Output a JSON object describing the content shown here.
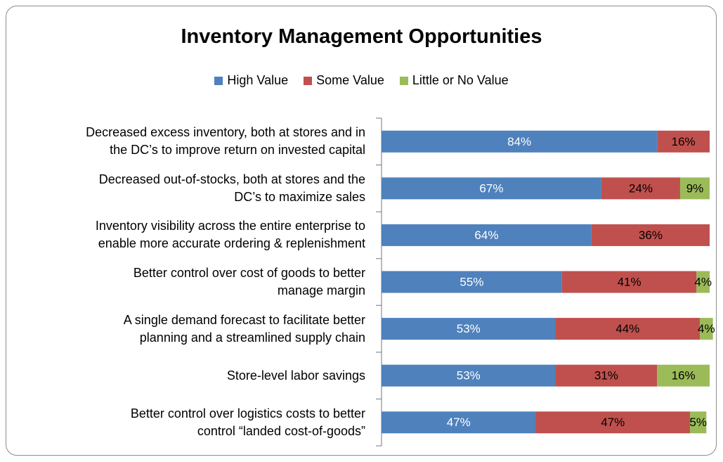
{
  "chart_data": {
    "type": "stacked-bar-horizontal",
    "title": "Inventory Management Opportunities",
    "categories": [
      "Decreased excess inventory, both at stores and in\nthe DC’s to improve return on invested capital",
      "Decreased out-of-stocks, both at stores and the\nDC’s to maximize sales",
      "Inventory visibility across the entire enterprise to\nenable more accurate ordering & replenishment",
      "Better control over cost of goods to better\nmanage margin",
      "A single demand forecast to facilitate better\nplanning and a streamlined supply chain",
      "Store-level labor savings",
      "Better control over logistics costs to better\ncontrol “landed cost-of-goods”"
    ],
    "series": [
      {
        "name": "High Value",
        "color": "#4f81bd",
        "label_color": "#ffffff",
        "values": [
          84,
          67,
          64,
          55,
          53,
          53,
          47
        ],
        "value_labels": [
          "84%",
          "67%",
          "64%",
          "55%",
          "53%",
          "53%",
          "47%"
        ]
      },
      {
        "name": "Some Value",
        "color": "#c0504d",
        "label_color": "#000000",
        "values": [
          16,
          24,
          36,
          41,
          44,
          31,
          47
        ],
        "value_labels": [
          "16%",
          "24%",
          "36%",
          "41%",
          "44%",
          "31%",
          "47%"
        ]
      },
      {
        "name": "Little or No Value",
        "color": "#9bbb59",
        "label_color": "#000000",
        "values": [
          0,
          9,
          0,
          4,
          4,
          16,
          5
        ],
        "value_labels": [
          null,
          "9%",
          null,
          "4%",
          "4%",
          "16%",
          "5%"
        ]
      }
    ],
    "xlim": [
      0,
      100
    ]
  }
}
